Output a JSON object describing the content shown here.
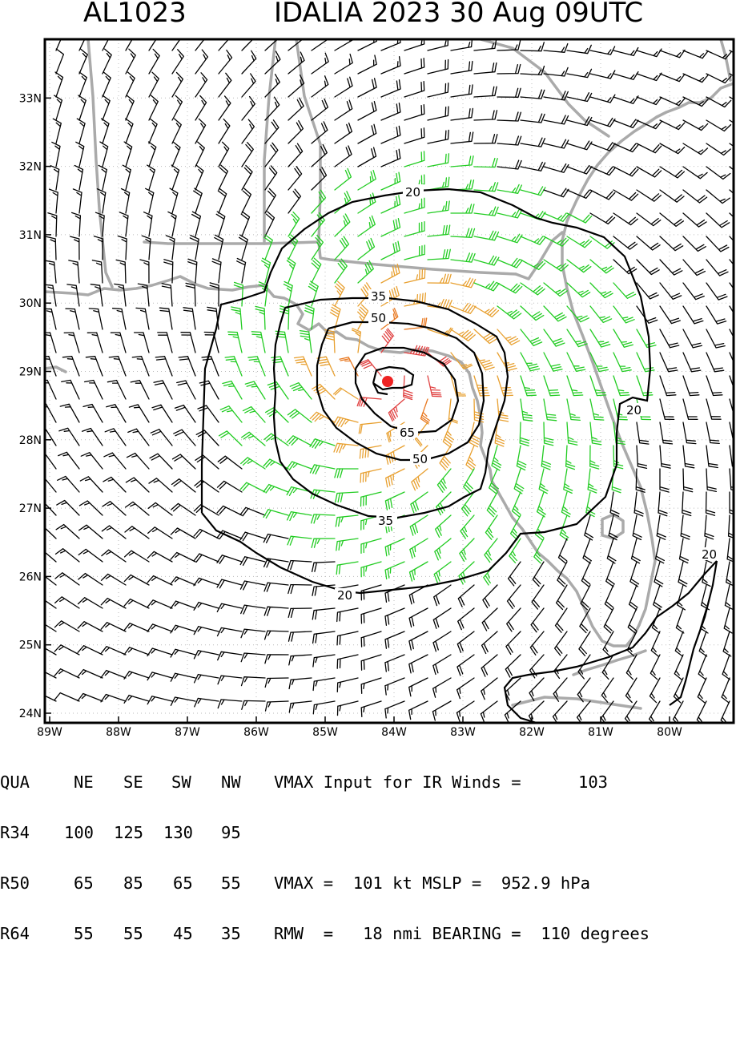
{
  "header": {
    "storm_id": "AL1023",
    "title": "IDALIA 2023 30 Aug 09UTC"
  },
  "map": {
    "lon_ticks": [
      "89W",
      "88W",
      "87W",
      "86W",
      "85W",
      "84W",
      "83W",
      "82W",
      "81W",
      "80W"
    ],
    "lat_ticks": [
      "24N",
      "25N",
      "26N",
      "27N",
      "28N",
      "29N",
      "30N",
      "31N",
      "32N",
      "33N"
    ],
    "lon_range": [
      -89.0,
      -79.0
    ],
    "lat_range": [
      24.0,
      34.0
    ],
    "center": {
      "lon": -84.0,
      "lat": 29.0
    },
    "contour_labels": {
      "c20a": "20",
      "c20b": "20",
      "c20c": "20",
      "c20d": "20",
      "c35a": "35",
      "c35b": "35",
      "c50a": "50",
      "c50b": "50",
      "c65": "65"
    },
    "colors": {
      "below34": "#000000",
      "gale": "#22cc22",
      "storm": "#e8a030",
      "strong": "#e87820",
      "hurricane": "#e04040",
      "center": "#ee2222",
      "coast": "#aaaaaa"
    }
  },
  "table": {
    "headers": [
      "QUA",
      "NE",
      "SE",
      "SW",
      "NW"
    ],
    "rows": [
      {
        "label": "R34",
        "ne": "100",
        "se": "125",
        "sw": "130",
        "nw": "95"
      },
      {
        "label": "R50",
        "ne": "65",
        "se": "85",
        "sw": "65",
        "nw": "55"
      },
      {
        "label": "R64",
        "ne": "55",
        "se": "55",
        "sw": "45",
        "nw": "35"
      }
    ],
    "vmax_input_label": "VMAX Input for IR Winds =",
    "vmax_input_value": "103",
    "vmax_line": "VMAX =  101 kt MSLP =  952.9 hPa",
    "rmw_line": "RMW  =   18 nmi BEARING =  110 degrees"
  }
}
